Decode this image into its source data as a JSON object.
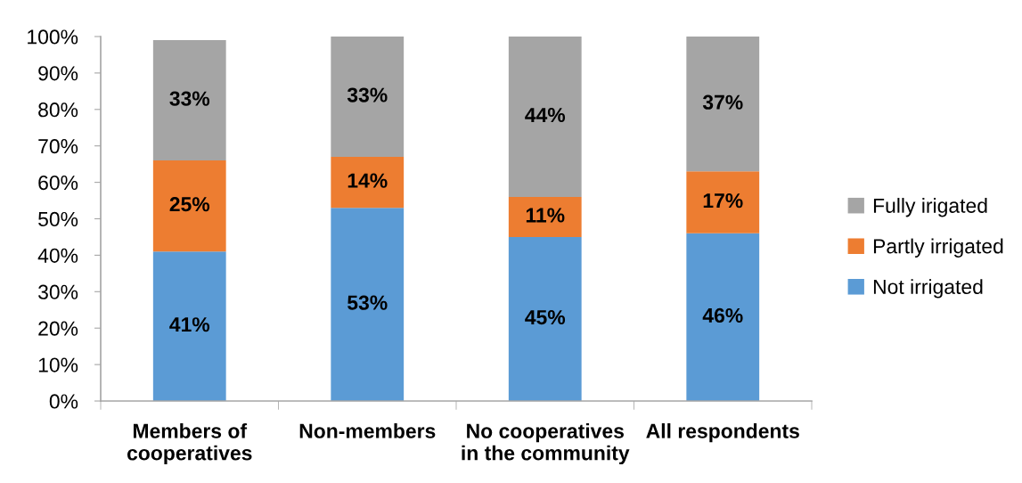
{
  "chart_data": {
    "type": "bar",
    "stacked": true,
    "categories": [
      "Members of\ncooperatives",
      "Non-members",
      "No cooperatives\nin the community",
      "All respondents"
    ],
    "series": [
      {
        "name": "Not irrigated",
        "color": "#5b9bd5",
        "values": [
          41,
          53,
          45,
          46
        ],
        "value_labels": [
          "41%",
          "53%",
          "45%",
          "46%"
        ]
      },
      {
        "name": "Partly irrigated",
        "color": "#ed7d31",
        "values": [
          25,
          14,
          11,
          17
        ],
        "value_labels": [
          "25%",
          "14%",
          "11%",
          "17%"
        ]
      },
      {
        "name": "Fully irigated",
        "color": "#a5a5a5",
        "values": [
          33,
          33,
          44,
          37
        ],
        "value_labels": [
          "33%",
          "33%",
          "44%",
          "37%"
        ]
      }
    ],
    "ylim": [
      0,
      100
    ],
    "yticks": [
      {
        "value": 0,
        "label": "0%"
      },
      {
        "value": 10,
        "label": "10%"
      },
      {
        "value": 20,
        "label": "20%"
      },
      {
        "value": 30,
        "label": "30%"
      },
      {
        "value": 40,
        "label": "40%"
      },
      {
        "value": 50,
        "label": "50%"
      },
      {
        "value": 60,
        "label": "60%"
      },
      {
        "value": 70,
        "label": "70%"
      },
      {
        "value": 80,
        "label": "80%"
      },
      {
        "value": 90,
        "label": "90%"
      },
      {
        "value": 100,
        "label": "100%"
      }
    ],
    "grid": false,
    "legend": "right"
  }
}
